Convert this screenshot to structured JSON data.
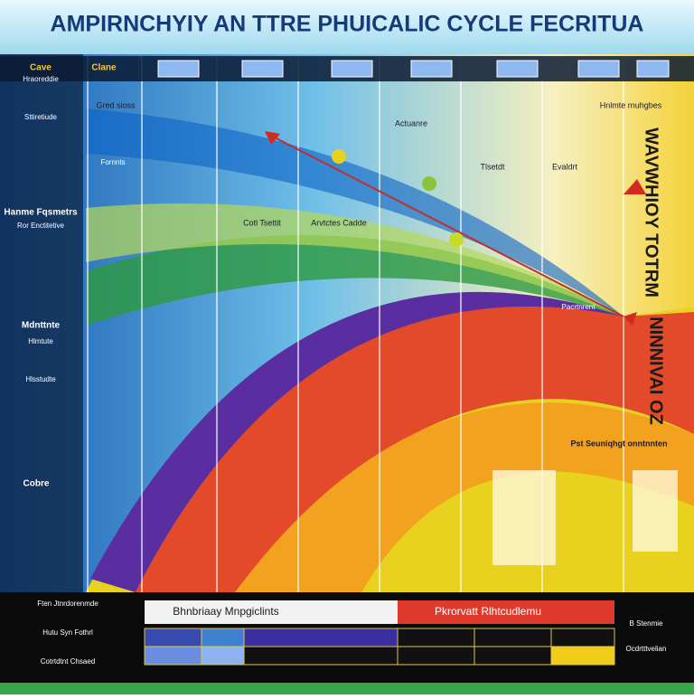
{
  "header": {
    "title": "AMPIRNCHYIY AN TTRE PHUICALIC CYCLE FECRITUA"
  },
  "left_panel": {
    "headings": [
      "Cave",
      "Clane",
      "Hanme Fqsmetrs",
      "Mdnttnte",
      "Cobre"
    ],
    "lines": [
      "Hraoreddie",
      "Sttiretiude",
      "Ror Enctitetive",
      "Hlmtute",
      "Hlsstudte"
    ]
  },
  "annotations": [
    "Gred sioss",
    "Fornnts",
    "Cotl Tsettit",
    "Arvtctes Cadde",
    "Actuanre",
    "Tlsetdt",
    "Evaldrt",
    "Pacrtnrent",
    "Hnlmte rnuhgbes",
    "Pst Seuniqhgt onntnnten"
  ],
  "side_texts": [
    "WAVWHIOY TOTRM",
    "NINNIVAI OZ"
  ],
  "bottom": {
    "left_lines": [
      "Ften Jtnrdorenmde",
      "Hutu Syn Fothrl",
      "Cotrtdtnt Chsaed"
    ],
    "buttons": [
      "Bhnbriaay Mnpgiclints",
      "Pkrorvatt Rlhtcudlemu"
    ],
    "right_labels": [
      "B Stenmie",
      "Ocdrtttvelian"
    ]
  }
}
